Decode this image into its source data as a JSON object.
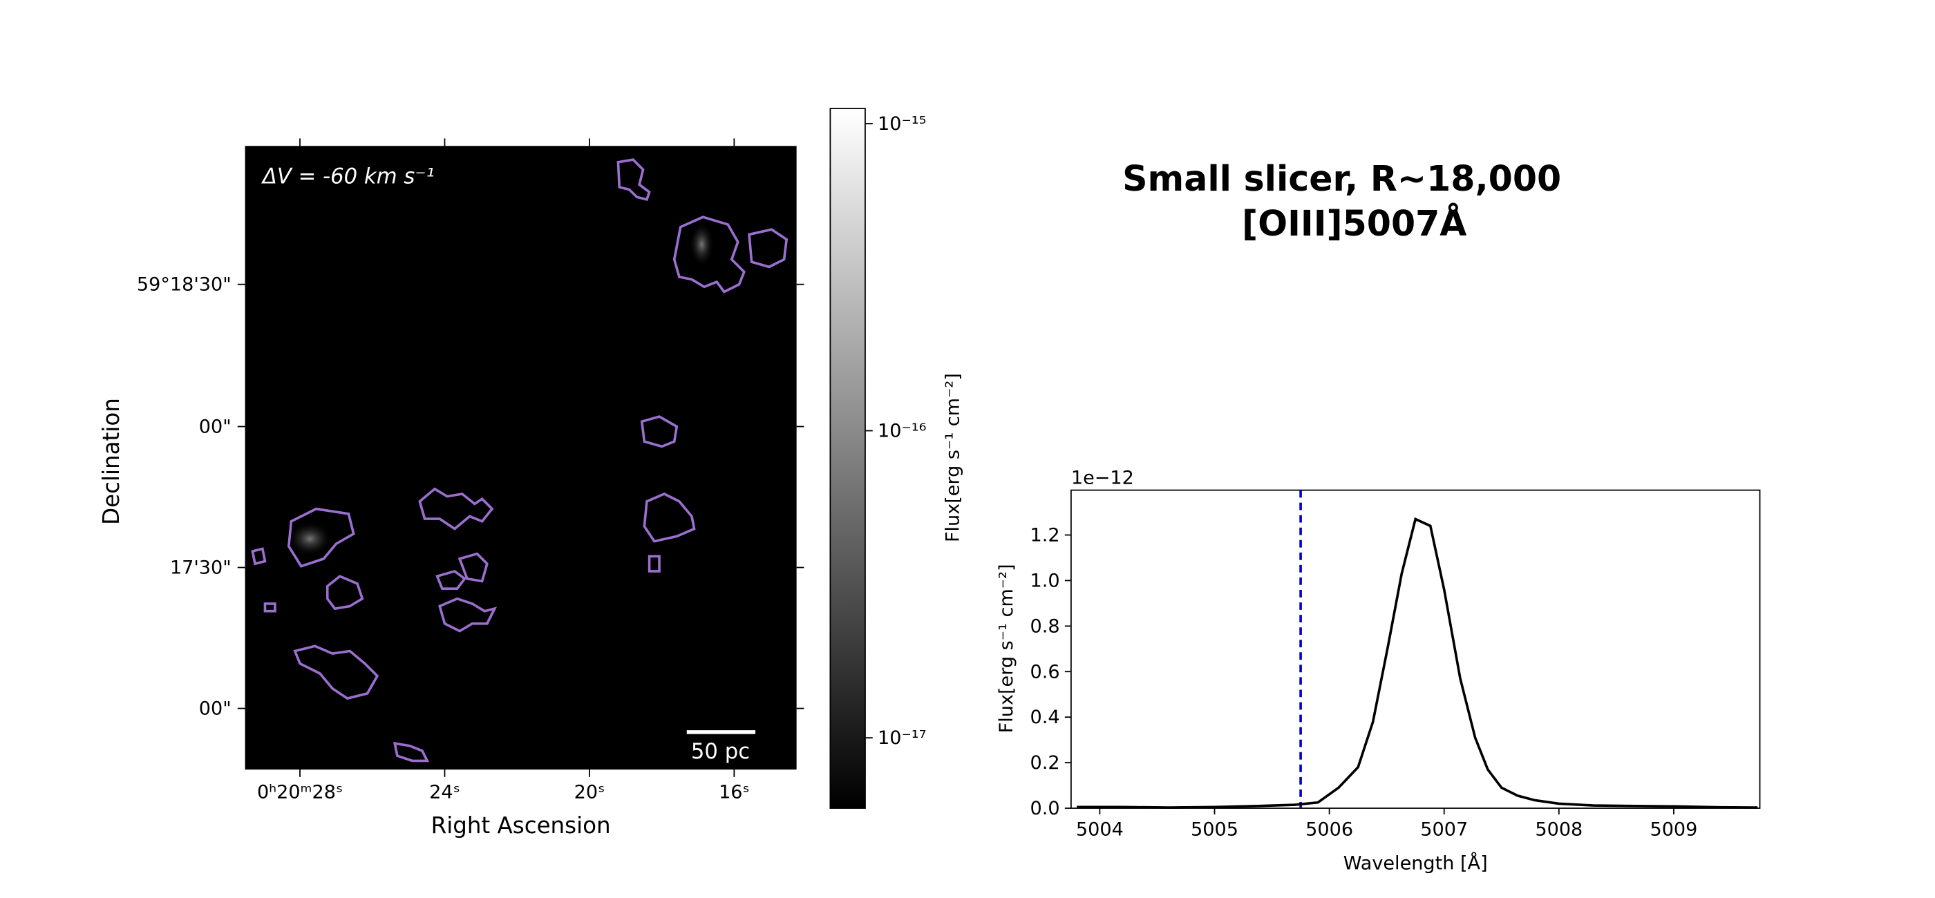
{
  "chart_data": [
    {
      "type": "image",
      "annotation": "ΔV =  -60 km s⁻¹",
      "scalebar_label": "50 pc",
      "xlabel": "Right Ascension",
      "ylabel": "Declination",
      "xticklabels": [
        "0ʰ20ᵐ28ˢ",
        "24ˢ",
        "20ˢ",
        "16ˢ"
      ],
      "yticklabels": [
        "59°18'30\"",
        "00\"",
        "17'30\"",
        "00\""
      ],
      "contour_color": "#9b6fd0",
      "colorbar": {
        "label": "Flux[erg s⁻¹ cm⁻²]",
        "scale": "log",
        "lim": [
          5.9e-18,
          1.12e-15
        ],
        "ticks": [
          {
            "value": 1e-15,
            "label": "10⁻¹⁵"
          },
          {
            "value": 1e-16,
            "label": "10⁻¹⁶"
          },
          {
            "value": 1e-17,
            "label": "10⁻¹⁷"
          }
        ]
      }
    },
    {
      "type": "line",
      "title": [
        "Small slicer, R~18,000",
        "[OIII]5007Å"
      ],
      "xlabel": "Wavelength [Å]",
      "ylabel": "Flux[erg s⁻¹ cm⁻²]",
      "offset_label": "1e−12",
      "xlim": [
        5003.75,
        5009.75
      ],
      "ylim": [
        0,
        1.397
      ],
      "xticks": [
        5004,
        5005,
        5006,
        5007,
        5008,
        5009
      ],
      "yticks": [
        {
          "value": 0,
          "label": "0.0"
        },
        {
          "value": 0.2,
          "label": "0.2"
        },
        {
          "value": 0.4,
          "label": "0.4"
        },
        {
          "value": 0.6,
          "label": "0.6"
        },
        {
          "value": 0.8,
          "label": "0.8"
        },
        {
          "value": 1,
          "label": "1.0"
        },
        {
          "value": 1.2,
          "label": "1.2"
        }
      ],
      "x": [
        5003.8,
        5004.2,
        5004.6,
        5005.0,
        5005.4,
        5005.7,
        5005.9,
        5006.08,
        5006.25,
        5006.38,
        5006.51,
        5006.63,
        5006.75,
        5006.88,
        5007.0,
        5007.14,
        5007.27,
        5007.38,
        5007.5,
        5007.64,
        5007.79,
        5008.0,
        5008.3,
        5008.6,
        5009.0,
        5009.4,
        5009.73
      ],
      "series": [
        {
          "color": "#000000",
          "values": [
            0.005,
            0.005,
            0.003,
            0.005,
            0.01,
            0.015,
            0.025,
            0.09,
            0.18,
            0.38,
            0.71,
            1.03,
            1.27,
            1.24,
            0.96,
            0.57,
            0.31,
            0.17,
            0.09,
            0.055,
            0.035,
            0.02,
            0.012,
            0.01,
            0.008,
            0.004,
            0.003
          ]
        }
      ],
      "vlines": [
        {
          "value": 5005.75,
          "color": "#0000cc",
          "style": "dashed"
        }
      ]
    }
  ]
}
